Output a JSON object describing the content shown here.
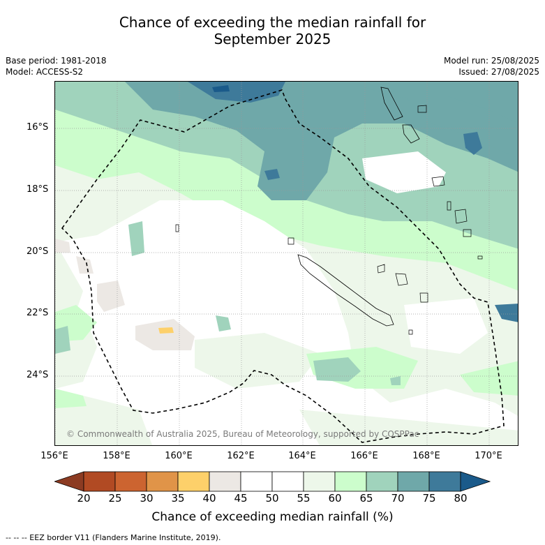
{
  "title": {
    "line1": "Chance of exceeding the median rainfall for",
    "line2": "September 2025"
  },
  "meta": {
    "base_period": "Base period: 1981-2018",
    "model": "Model: ACCESS-S2",
    "model_run": "Model run: 25/08/2025",
    "issued": "Issued: 27/08/2025"
  },
  "map": {
    "copyright": "© Commonwealth of Australia 2025, Bureau of Meteorology, supported by COSPPac",
    "lat_labels": [
      "16°S",
      "18°S",
      "20°S",
      "22°S",
      "24°S"
    ],
    "lon_labels": [
      "156°E",
      "158°E",
      "160°E",
      "162°E",
      "164°E",
      "166°E",
      "168°E",
      "170°E"
    ],
    "border_style": "dashed black",
    "grid": "dotted gray"
  },
  "colorbar": {
    "ticks": [
      "20",
      "25",
      "30",
      "35",
      "40",
      "45",
      "50",
      "55",
      "60",
      "65",
      "70",
      "75",
      "80"
    ],
    "colors": [
      "#8c3b22",
      "#b14a23",
      "#cc6430",
      "#e09448",
      "#fdd06a",
      "#ece8e4",
      "#ffffff",
      "#ffffff",
      "#edf7ea",
      "#ccfdcc",
      "#a0d3bc",
      "#6fa8a9",
      "#3e7a9a",
      "#1a5a8a"
    ],
    "label": "Chance of exceeding median rainfall (%)"
  },
  "footer": "-- -- -- EEZ border V11 (Flanders Marine Institute, 2019)."
}
